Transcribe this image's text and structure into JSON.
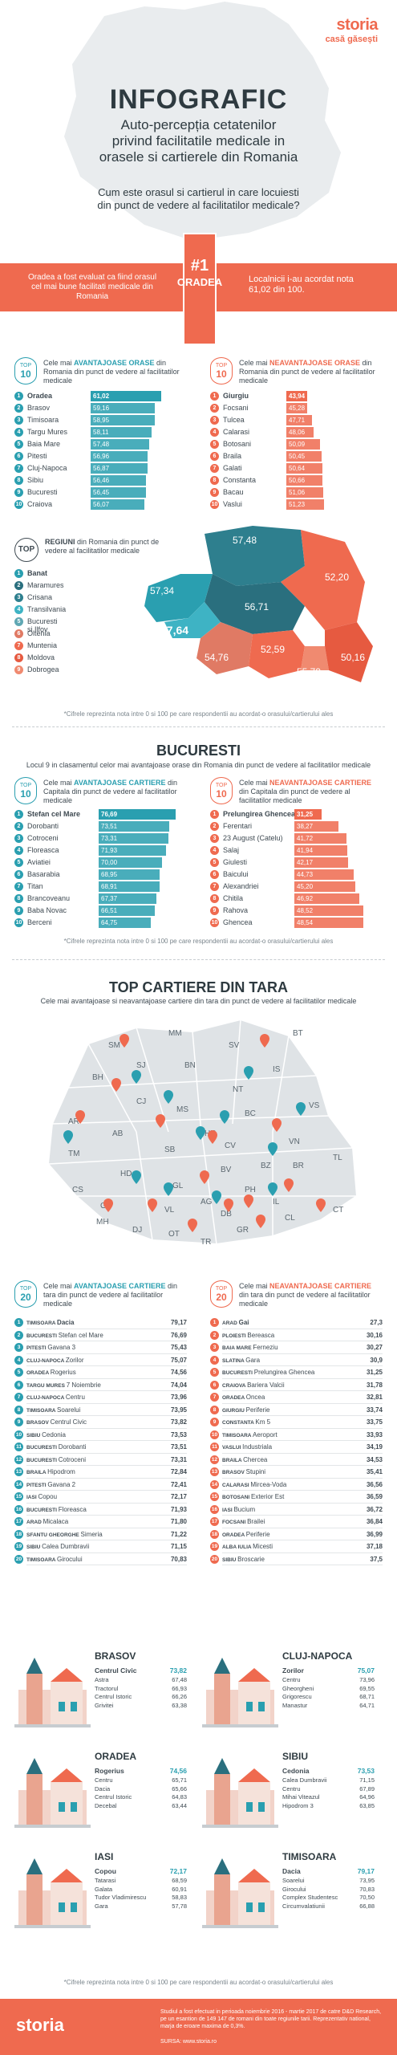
{
  "header": {
    "brand": "storia",
    "tagline": "casă găsești",
    "title": "INFOGRAFIC",
    "subtitle_lines": [
      "Auto-percepția cetatenilor",
      "privind facilitatile medicale in",
      "orasele si cartierele din Romania"
    ],
    "question_lines": [
      "Cum este orasul si cartierul in care locuiesti",
      "din punct de vedere al facilitatilor medicale?"
    ]
  },
  "banner": {
    "left_text": "Oradea a fost evaluat ca fiind orasul cel mai bune facilitati medicale din Romania",
    "rank": "#1",
    "city": "ORADEA",
    "right_text": "Localnicii i-au acordat nota 61,02 din 100."
  },
  "cities_best": {
    "badge_top": "TOP",
    "badge_num": "10",
    "heading_prefix": "Cele mai ",
    "heading_bold": "AVANTAJOASE ORASE",
    "heading_rest": " din Romania din punct de vedere al facilitatilor medicale",
    "items": [
      {
        "rank": "1",
        "name": "Oradea",
        "value": "61,02"
      },
      {
        "rank": "2",
        "name": "Brasov",
        "value": "59,16"
      },
      {
        "rank": "3",
        "name": "Timisoara",
        "value": "58,95"
      },
      {
        "rank": "4",
        "name": "Targu Mures",
        "value": "58,11"
      },
      {
        "rank": "5",
        "name": "Baia Mare",
        "value": "57,48"
      },
      {
        "rank": "6",
        "name": "Pitesti",
        "value": "56,96"
      },
      {
        "rank": "7",
        "name": "Cluj-Napoca",
        "value": "56,87"
      },
      {
        "rank": "8",
        "name": "Sibiu",
        "value": "56,46"
      },
      {
        "rank": "9",
        "name": "Bucuresti",
        "value": "56,45"
      },
      {
        "rank": "10",
        "name": "Craiova",
        "value": "56,07"
      }
    ]
  },
  "cities_worst": {
    "badge_top": "TOP",
    "badge_num": "10",
    "heading_prefix": "Cele mai ",
    "heading_bold": "NEAVANTAJOASE ORASE",
    "heading_rest": " din Romania din punct de vedere al facilitatilor medicale",
    "items": [
      {
        "rank": "1",
        "name": "Giurgiu",
        "value": "43,94"
      },
      {
        "rank": "2",
        "name": "Focsani",
        "value": "45,28"
      },
      {
        "rank": "3",
        "name": "Tulcea",
        "value": "47,71"
      },
      {
        "rank": "4",
        "name": "Calarasi",
        "value": "48,06"
      },
      {
        "rank": "5",
        "name": "Botosani",
        "value": "50,09"
      },
      {
        "rank": "6",
        "name": "Braila",
        "value": "50,45"
      },
      {
        "rank": "7",
        "name": "Galati",
        "value": "50,64"
      },
      {
        "rank": "8",
        "name": "Constanta",
        "value": "50,66"
      },
      {
        "rank": "9",
        "name": "Bacau",
        "value": "51,06"
      },
      {
        "rank": "10",
        "name": "Vaslui",
        "value": "51,23"
      }
    ]
  },
  "regions": {
    "tag": "TOP",
    "heading_bold": "REGIUNI",
    "heading_rest": " din Romania din punct de vedere al facilitatilor medicale",
    "items": [
      {
        "rank": "1",
        "name": "Banat"
      },
      {
        "rank": "2",
        "name": "Maramures"
      },
      {
        "rank": "3",
        "name": "Crisana"
      },
      {
        "rank": "4",
        "name": "Transilvania"
      },
      {
        "rank": "5",
        "name": "Bucuresti si Ilfov"
      },
      {
        "rank": "6",
        "name": "Oltenia"
      },
      {
        "rank": "7",
        "name": "Muntenia"
      },
      {
        "rank": "8",
        "name": "Moldova"
      },
      {
        "rank": "9",
        "name": "Dobrogea"
      }
    ],
    "map_values": [
      "57,48",
      "57,34",
      "56,71",
      "52,20",
      "57,64",
      "54,76",
      "52,59",
      "55,79",
      "50,16"
    ]
  },
  "footnote": "*Cifrele reprezinta nota intre 0 si 100 pe care respondentii au acordat-o orasului/cartierului ales",
  "bucuresti": {
    "title": "BUCURESTI",
    "subtitle": "Locul 9 in clasamentul celor mai avantajoase orase din Romania din punct de vedere al facilitatilor medicale",
    "best": {
      "badge_top": "TOP",
      "badge_num": "10",
      "heading_prefix": "Cele mai ",
      "heading_bold": "AVANTAJOASE CARTIERE",
      "heading_rest": " din Capitala din punct de vedere al facilitatilor medicale",
      "items": [
        {
          "rank": "1",
          "name": "Stefan cel Mare",
          "value": "76,69"
        },
        {
          "rank": "2",
          "name": "Dorobanti",
          "value": "73,51"
        },
        {
          "rank": "3",
          "name": "Cotroceni",
          "value": "73,31"
        },
        {
          "rank": "4",
          "name": "Floreasca",
          "value": "71,93"
        },
        {
          "rank": "5",
          "name": "Aviatiei",
          "value": "70,00"
        },
        {
          "rank": "6",
          "name": "Basarabia",
          "value": "68,95"
        },
        {
          "rank": "7",
          "name": "Titan",
          "value": "68,91"
        },
        {
          "rank": "8",
          "name": "Brancoveanu",
          "value": "67,37"
        },
        {
          "rank": "9",
          "name": "Baba Novac",
          "value": "66,51"
        },
        {
          "rank": "10",
          "name": "Berceni",
          "value": "64,75"
        }
      ]
    },
    "worst": {
      "badge_top": "TOP",
      "badge_num": "10",
      "heading_prefix": "Cele mai ",
      "heading_bold": "NEAVANTAJOASE CARTIERE",
      "heading_rest": " din Capitala din punct de vedere al facilitatilor medicale",
      "items": [
        {
          "rank": "1",
          "name": "Prelungirea Ghencea",
          "value": "31,25"
        },
        {
          "rank": "2",
          "name": "Ferentari",
          "value": "38,27"
        },
        {
          "rank": "3",
          "name": "23 August (Catelu)",
          "value": "41,72"
        },
        {
          "rank": "4",
          "name": "Salaj",
          "value": "41,94"
        },
        {
          "rank": "5",
          "name": "Giulesti",
          "value": "42,17"
        },
        {
          "rank": "6",
          "name": "Baicului",
          "value": "44,73"
        },
        {
          "rank": "7",
          "name": "Alexandriei",
          "value": "45,20"
        },
        {
          "rank": "8",
          "name": "Chitila",
          "value": "46,92"
        },
        {
          "rank": "9",
          "name": "Rahova",
          "value": "48,52"
        },
        {
          "rank": "10",
          "name": "Ghencea",
          "value": "48,54"
        }
      ]
    }
  },
  "top_cartiere": {
    "title": "TOP CARTIERE DIN TARA",
    "subtitle": "Cele mai avantajoase si neavantajoase cartiere din tara din punct de vedere al facilitatilor medicale",
    "county_codes": [
      "SM",
      "MM",
      "SV",
      "BT",
      "BH",
      "SJ",
      "BN",
      "IS",
      "CJ",
      "MS",
      "NT",
      "AR",
      "AB",
      "HR",
      "BC",
      "VS",
      "TM",
      "HD",
      "SB",
      "CV",
      "VN",
      "CS",
      "BV",
      "GL",
      "GJ",
      "VL",
      "AG",
      "BZ",
      "BR",
      "TL",
      "MH",
      "DB",
      "PH",
      "DJ",
      "OT",
      "IL",
      "TR",
      "GR",
      "CL",
      "CT"
    ]
  },
  "top20_best": {
    "badge_top": "TOP",
    "badge_num": "20",
    "heading_prefix": "Cele mai ",
    "heading_bold": "AVANTAJOASE CARTIERE",
    "heading_rest": " din tara din punct de vedere al facilitatilor medicale",
    "items": [
      {
        "rank": "1",
        "city": "TIMISOARA",
        "name": "Dacia",
        "value": "79,17"
      },
      {
        "rank": "2",
        "city": "BUCURESTI",
        "name": "Stefan cel Mare",
        "value": "76,69"
      },
      {
        "rank": "3",
        "city": "PITESTI",
        "name": "Gavana 3",
        "value": "75,43"
      },
      {
        "rank": "4",
        "city": "CLUJ-NAPOCA",
        "name": "Zorilor",
        "value": "75,07"
      },
      {
        "rank": "5",
        "city": "ORADEA",
        "name": "Rogerius",
        "value": "74,56"
      },
      {
        "rank": "6",
        "city": "TARGU MURES",
        "name": "7 Noiembrie",
        "value": "74,04"
      },
      {
        "rank": "7",
        "city": "CLUJ-NAPOCA",
        "name": "Centru",
        "value": "73,96"
      },
      {
        "rank": "8",
        "city": "TIMISOARA",
        "name": "Soarelui",
        "value": "73,95"
      },
      {
        "rank": "9",
        "city": "BRASOV",
        "name": "Centrul Civic",
        "value": "73,82"
      },
      {
        "rank": "10",
        "city": "SIBIU",
        "name": "Cedonia",
        "value": "73,53"
      },
      {
        "rank": "11",
        "city": "BUCURESTI",
        "name": "Dorobanti",
        "value": "73,51"
      },
      {
        "rank": "12",
        "city": "BUCURESTI",
        "name": "Cotroceni",
        "value": "73,31"
      },
      {
        "rank": "13",
        "city": "BRAILA",
        "name": "Hipodrom",
        "value": "72,84"
      },
      {
        "rank": "14",
        "city": "PITESTI",
        "name": "Gavana 2",
        "value": "72,41"
      },
      {
        "rank": "15",
        "city": "IASI",
        "name": "Copou",
        "value": "72,17"
      },
      {
        "rank": "16",
        "city": "BUCURESTI",
        "name": "Floreasca",
        "value": "71,93"
      },
      {
        "rank": "17",
        "city": "ARAD",
        "name": "Micalaca",
        "value": "71,80"
      },
      {
        "rank": "18",
        "city": "SFANTU GHEORGHE",
        "name": "Simeria",
        "value": "71,22"
      },
      {
        "rank": "19",
        "city": "SIBIU",
        "name": "Calea Dumbravii",
        "value": "71,15"
      },
      {
        "rank": "20",
        "city": "TIMISOARA",
        "name": "Girocului",
        "value": "70,83"
      }
    ]
  },
  "top20_worst": {
    "badge_top": "TOP",
    "badge_num": "20",
    "heading_prefix": "Cele mai ",
    "heading_bold": "NEAVANTAJOASE CARTIERE",
    "heading_rest": " din tara din punct de vedere al facilitatilor medicale",
    "items": [
      {
        "rank": "1",
        "city": "ARAD",
        "name": "Gai",
        "value": "27,3"
      },
      {
        "rank": "2",
        "city": "PLOIESTI",
        "name": "Bereasca",
        "value": "30,16"
      },
      {
        "rank": "3",
        "city": "BAIA MARE",
        "name": "Ferneziu",
        "value": "30,27"
      },
      {
        "rank": "4",
        "city": "SLATINA",
        "name": "Gara",
        "value": "30,9"
      },
      {
        "rank": "5",
        "city": "BUCURESTI",
        "name": "Prelungirea Ghencea",
        "value": "31,25"
      },
      {
        "rank": "6",
        "city": "CRAIOVA",
        "name": "Bariera Valcii",
        "value": "31,78"
      },
      {
        "rank": "7",
        "city": "ORADEA",
        "name": "Oncea",
        "value": "32,81"
      },
      {
        "rank": "8",
        "city": "GIURGIU",
        "name": "Periferie",
        "value": "33,74"
      },
      {
        "rank": "9",
        "city": "CONSTANTA",
        "name": "Km 5",
        "value": "33,75"
      },
      {
        "rank": "10",
        "city": "TIMISOARA",
        "name": "Aeroport",
        "value": "33,93"
      },
      {
        "rank": "11",
        "city": "VASLUI",
        "name": "Industriala",
        "value": "34,19"
      },
      {
        "rank": "12",
        "city": "BRAILA",
        "name": "Chercea",
        "value": "34,53"
      },
      {
        "rank": "13",
        "city": "BRASOV",
        "name": "Stupini",
        "value": "35,41"
      },
      {
        "rank": "14",
        "city": "CALARASI",
        "name": "Mircea-Voda",
        "value": "36,56"
      },
      {
        "rank": "15",
        "city": "BOTOSANI",
        "name": "Exterior Est",
        "value": "36,59"
      },
      {
        "rank": "16",
        "city": "IASI",
        "name": "Bucium",
        "value": "36,72"
      },
      {
        "rank": "17",
        "city": "FOCSANI",
        "name": "Brailei",
        "value": "36,84"
      },
      {
        "rank": "18",
        "city": "ORADEA",
        "name": "Periferie",
        "value": "36,99"
      },
      {
        "rank": "19",
        "city": "ALBA IULIA",
        "name": "Micesti",
        "value": "37,18"
      },
      {
        "rank": "20",
        "city": "SIBIU",
        "name": "Broscarie",
        "value": "37,5"
      }
    ]
  },
  "city_boxes": [
    {
      "name": "BRASOV",
      "items": [
        {
          "n": "Centrul Civic",
          "v": "73,82"
        },
        {
          "n": "Astra",
          "v": "67,48"
        },
        {
          "n": "Tractorul",
          "v": "66,93"
        },
        {
          "n": "Centrul Istoric",
          "v": "66,26"
        },
        {
          "n": "Grivitei",
          "v": "63,38"
        }
      ]
    },
    {
      "name": "CLUJ-NAPOCA",
      "items": [
        {
          "n": "Zorilor",
          "v": "75,07"
        },
        {
          "n": "Centru",
          "v": "73,96"
        },
        {
          "n": "Gheorgheni",
          "v": "69,55"
        },
        {
          "n": "Grigorescu",
          "v": "68,71"
        },
        {
          "n": "Manastur",
          "v": "64,71"
        }
      ]
    },
    {
      "name": "ORADEA",
      "items": [
        {
          "n": "Rogerius",
          "v": "74,56"
        },
        {
          "n": "Centru",
          "v": "65,71"
        },
        {
          "n": "Dacia",
          "v": "65,66"
        },
        {
          "n": "Centrul Istoric",
          "v": "64,83"
        },
        {
          "n": "Decebal",
          "v": "63,44"
        }
      ]
    },
    {
      "name": "SIBIU",
      "items": [
        {
          "n": "Cedonia",
          "v": "73,53"
        },
        {
          "n": "Calea Dumbravii",
          "v": "71,15"
        },
        {
          "n": "Centru",
          "v": "67,89"
        },
        {
          "n": "Mihai Viteazul",
          "v": "64,96"
        },
        {
          "n": "Hipodrom 3",
          "v": "63,85"
        }
      ]
    },
    {
      "name": "IASI",
      "items": [
        {
          "n": "Copou",
          "v": "72,17"
        },
        {
          "n": "Tatarasi",
          "v": "68,59"
        },
        {
          "n": "Galata",
          "v": "60,91"
        },
        {
          "n": "Tudor Vladimirescu",
          "v": "58,83"
        },
        {
          "n": "Gara",
          "v": "57,78"
        }
      ]
    },
    {
      "name": "TIMISOARA",
      "items": [
        {
          "n": "Dacia",
          "v": "79,17"
        },
        {
          "n": "Soarelui",
          "v": "73,95"
        },
        {
          "n": "Girocului",
          "v": "70,83"
        },
        {
          "n": "Complex Studentesc",
          "v": "70,50"
        },
        {
          "n": "Circumvalatiunii",
          "v": "66,88"
        }
      ]
    }
  ],
  "footer": {
    "brand": "storia",
    "text": "Studiul a fost efectuat in perioada noiembrie 2016 - martie 2017 de catre D&D Research, pe un esantion de 149 147 de romani din toate regiunile tarii. Reprezentativ national, marja de eroare maxima de 0,3%.",
    "source": "SURSA: www.storia.ro"
  }
}
